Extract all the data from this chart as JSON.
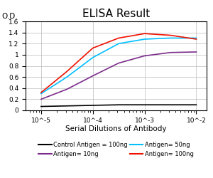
{
  "title": "ELISA Result",
  "ylabel": "O.D.",
  "xlabel": "Serial Dilutions of Antibody",
  "ylim": [
    0,
    1.6
  ],
  "yticks": [
    0,
    0.2,
    0.4,
    0.6,
    0.8,
    1.0,
    1.2,
    1.4,
    1.6
  ],
  "ytick_labels": [
    "0",
    "0.2",
    "0.4",
    "0.6",
    "0.8",
    "1",
    "1.2",
    "1.4",
    "1.6"
  ],
  "xtick_positions": [
    0.01,
    0.001,
    0.0001,
    1e-05
  ],
  "xtick_labels": [
    "10^-2",
    "10^-3",
    "10^-4",
    "10^-5"
  ],
  "lines": [
    {
      "label": "Control Antigen = 100ng",
      "color": "#000000",
      "x_log": [
        -2,
        -2.5,
        -3,
        -3.5,
        -4,
        -4.5,
        -5
      ],
      "y": [
        0.1,
        0.1,
        0.1,
        0.1,
        0.09,
        0.08,
        0.07
      ]
    },
    {
      "label": "Antigen= 10ng",
      "color": "#7B2D8B",
      "x_log": [
        -2,
        -2.5,
        -3,
        -3.5,
        -4,
        -4.5,
        -5
      ],
      "y": [
        1.05,
        1.04,
        0.98,
        0.85,
        0.62,
        0.38,
        0.2
      ]
    },
    {
      "label": "Antigen= 50ng",
      "color": "#00BFFF",
      "x_log": [
        -2,
        -2.5,
        -3,
        -3.5,
        -4,
        -4.5,
        -5
      ],
      "y": [
        1.3,
        1.3,
        1.28,
        1.2,
        0.95,
        0.6,
        0.3
      ]
    },
    {
      "label": "Antigen= 100ng",
      "color": "#EE1100",
      "x_log": [
        -2,
        -2.5,
        -3,
        -3.5,
        -4,
        -4.5,
        -5
      ],
      "y": [
        1.28,
        1.35,
        1.38,
        1.3,
        1.12,
        0.7,
        0.32
      ]
    }
  ],
  "legend_items": [
    {
      "label": "Control Antigen = 100ng",
      "color": "#000000"
    },
    {
      "label": "Antigen= 10ng",
      "color": "#7B2D8B"
    },
    {
      "label": "Antigen= 50ng",
      "color": "#00BFFF"
    },
    {
      "label": "Antigen= 100ng",
      "color": "#EE1100"
    }
  ],
  "title_fontsize": 11,
  "axis_label_fontsize": 7.5,
  "tick_fontsize": 6.5,
  "legend_fontsize": 6,
  "background_color": "#ffffff",
  "grid_color": "#bbbbbb"
}
